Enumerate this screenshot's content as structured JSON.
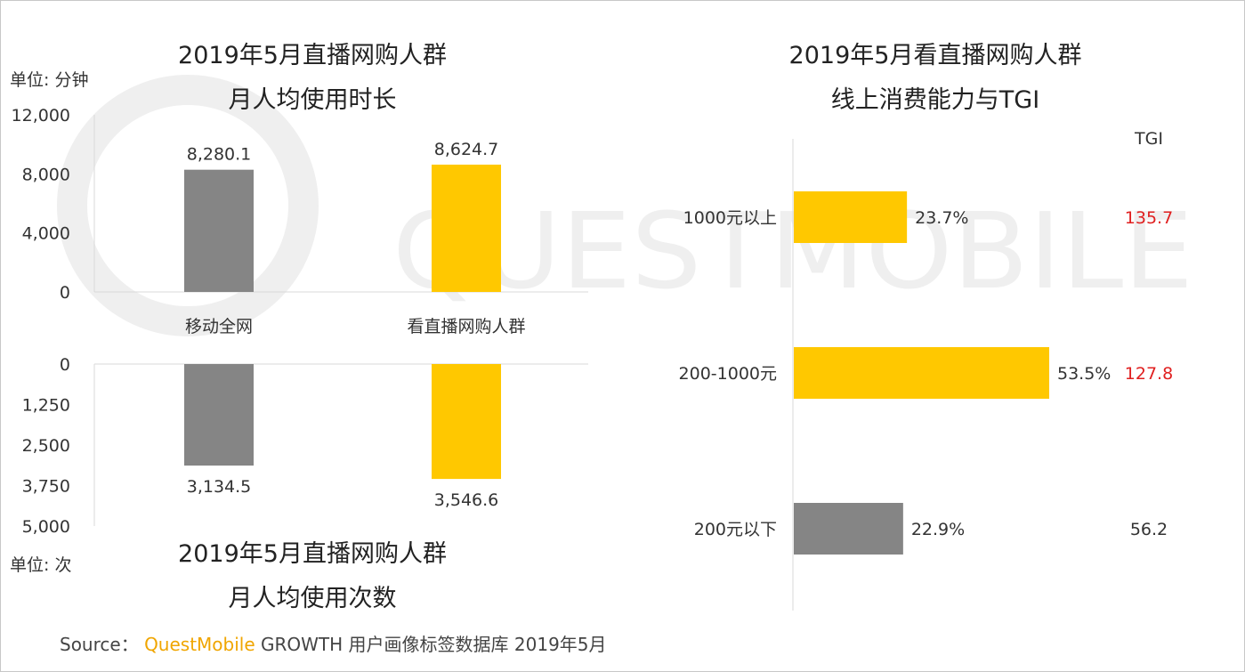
{
  "watermark": {
    "text": "QUESTMOBILE"
  },
  "colors": {
    "gray": "#858585",
    "yellow": "#FFC800",
    "red": "#E02020",
    "text": "#333333",
    "watermark": "#efefef"
  },
  "chart_data": [
    {
      "id": "monthly-duration",
      "type": "bar",
      "title_lines": [
        "2019年5月直播网购人群",
        "月人均使用时长"
      ],
      "unit_label": "单位: 分钟",
      "categories": [
        "移动全网",
        "看直播网购人群"
      ],
      "values": [
        8280.1,
        8624.7
      ],
      "value_labels": [
        "8,280.1",
        "8,624.7"
      ],
      "bar_colors": [
        "#858585",
        "#FFC800"
      ],
      "ylim": [
        0,
        12000
      ],
      "yticks": [
        0,
        4000,
        8000,
        12000
      ],
      "ytick_labels": [
        "0",
        "4,000",
        "8,000",
        "12,000"
      ]
    },
    {
      "id": "monthly-sessions",
      "type": "bar",
      "orientation": "downward",
      "title_lines": [
        "2019年5月直播网购人群",
        "月人均使用次数"
      ],
      "unit_label": "单位: 次",
      "categories": [
        "移动全网",
        "看直播网购人群"
      ],
      "values": [
        3134.5,
        3546.6
      ],
      "value_labels": [
        "3,134.5",
        "3,546.6"
      ],
      "bar_colors": [
        "#858585",
        "#FFC800"
      ],
      "ylim": [
        0,
        5000
      ],
      "yticks": [
        0,
        1250,
        2500,
        3750,
        5000
      ],
      "ytick_labels": [
        "0",
        "1,250",
        "2,500",
        "3,750",
        "5,000"
      ]
    },
    {
      "id": "consumption-tgi",
      "type": "bar",
      "orientation": "horizontal",
      "title_lines": [
        "2019年5月看直播网购人群",
        "线上消费能力与TGI"
      ],
      "tgi_header": "TGI",
      "categories": [
        "1000元以上",
        "200-1000元",
        "200元以下"
      ],
      "values": [
        23.7,
        53.5,
        22.9
      ],
      "value_labels": [
        "23.7%",
        "53.5%",
        "22.9%"
      ],
      "bar_colors": [
        "#FFC800",
        "#FFC800",
        "#858585"
      ],
      "tgi": [
        "135.7",
        "127.8",
        "56.2"
      ],
      "tgi_colors": [
        "#E02020",
        "#E02020",
        "#333333"
      ],
      "xlim": [
        0,
        55
      ]
    }
  ],
  "source": {
    "label": "Source：",
    "brand": "QuestMobile",
    "text": "GROWTH 用户画像标签数据库 2019年5月"
  }
}
